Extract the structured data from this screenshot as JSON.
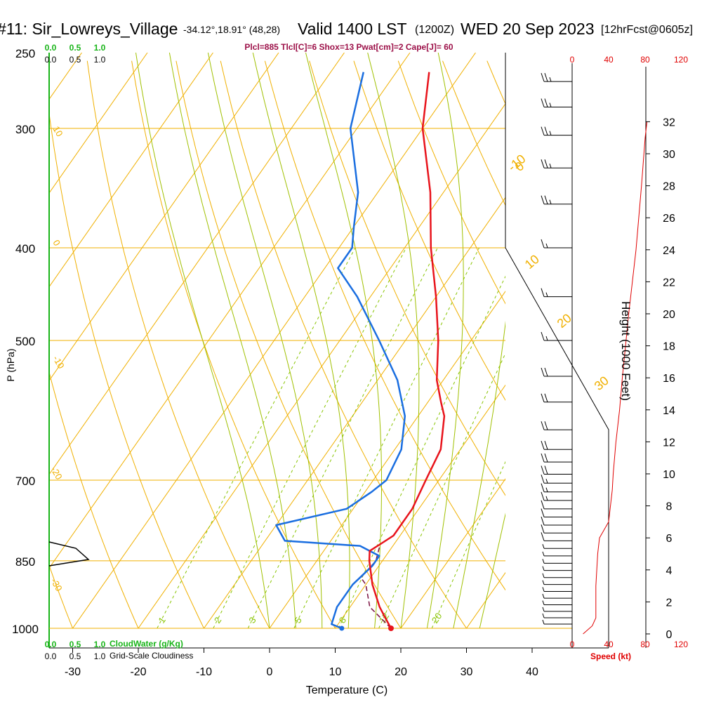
{
  "header": {
    "station": "#11: Sir_Lowreys_Village",
    "coords": "-34.12°,18.91° (48,28)",
    "valid": "Valid 1400 LST",
    "zulu": "(1200Z)",
    "date": "WED 20 Sep 2023",
    "forecast": "[12hrFcst@0605z]"
  },
  "params_line": "Plcl=885 Tlcl[C]=6 Shox=13 Pwat[cm]=2 Cape[J]= 60",
  "colors": {
    "temp": "#e8141c",
    "dew": "#1a6ee0",
    "isotherm": "#f0b000",
    "mixing": "#88c400",
    "moist": "#a0c000",
    "cloud": "#18b418",
    "param_text": "#9c1048",
    "speed": "#e00000"
  },
  "chart_data": {
    "type": "line",
    "title": "Skew-T sounding",
    "xlabel": "Temperature (C)",
    "ylabel": "P (hPa)",
    "right_ylabel": "Height (1000 Feet)",
    "x_ticks": [
      "-30",
      "-20",
      "-10",
      "0",
      "10",
      "20",
      "30",
      "40"
    ],
    "pressure_ticks": [
      "250",
      "300",
      "400",
      "500",
      "700",
      "850",
      "1000"
    ],
    "height_ticks": [
      "0",
      "2",
      "4",
      "6",
      "8",
      "10",
      "12",
      "14",
      "16",
      "18",
      "20",
      "22",
      "24",
      "26",
      "28",
      "30",
      "32"
    ],
    "xlim": [
      -35,
      45
    ],
    "plim": [
      1000,
      250
    ],
    "series": [
      {
        "name": "Temperature",
        "p": [
          1000,
          975,
          950,
          900,
          850,
          830,
          815,
          800,
          750,
          700,
          650,
          600,
          580,
          550,
          500,
          450,
          400,
          350,
          300,
          262
        ],
        "t": [
          18.5,
          16.5,
          14.5,
          11,
          8,
          7,
          8,
          9,
          9,
          8,
          7,
          4,
          2,
          -1,
          -5,
          -10,
          -16,
          -22,
          -30,
          -35
        ]
      },
      {
        "name": "Dew point",
        "p": [
          1000,
          990,
          950,
          900,
          860,
          840,
          820,
          810,
          780,
          750,
          720,
          700,
          650,
          600,
          550,
          500,
          450,
          420,
          400,
          380,
          350,
          300,
          262
        ],
        "t": [
          11,
          9,
          8,
          8,
          9,
          9,
          5,
          -7,
          -10,
          -1,
          1,
          2,
          1,
          -2,
          -7,
          -14,
          -22,
          -28,
          -28,
          -30,
          -33,
          -41,
          -45
        ]
      },
      {
        "name": "Parcel",
        "p": [
          1000,
          950,
          900,
          885,
          850,
          820
        ],
        "t": [
          18.5,
          13,
          10,
          8.5,
          9,
          8
        ]
      }
    ],
    "isotherm_labels": [
      "-10",
      "0",
      "10",
      "20",
      "30"
    ],
    "dry_adiabat_labels": [
      "10",
      "0",
      "-10",
      "-20",
      "-30"
    ],
    "mixing_ratio_labels": [
      "1",
      "2",
      "3",
      "5",
      "8",
      "12",
      "20"
    ],
    "cloud_water_ticks": [
      "0.0",
      "0.5",
      "1.0"
    ],
    "cloud_water_label": "CloudWater (g/Kg)",
    "cloudiness_ticks": [
      "0.0",
      "0.5",
      "1.0"
    ],
    "cloudiness_label": "Grid-Scale Cloudiness",
    "speed_ticks": [
      "0",
      "40",
      "80",
      "120"
    ],
    "speed_label": "Speed (kt)",
    "speed_profile": {
      "h_kft": [
        0,
        0.5,
        1,
        3,
        5,
        6,
        7,
        8,
        9,
        10,
        12,
        14,
        16,
        20,
        24,
        28,
        31,
        32
      ],
      "kt": [
        12,
        22,
        26,
        26,
        28,
        30,
        40,
        42,
        44,
        45,
        48,
        52,
        55,
        62,
        70,
        76,
        80,
        82
      ]
    },
    "wind_barbs": {
      "p": [
        990,
        975,
        960,
        945,
        930,
        915,
        900,
        885,
        870,
        855,
        840,
        825,
        810,
        795,
        780,
        765,
        750,
        735,
        720,
        705,
        690,
        670,
        650,
        620,
        580,
        545,
        500,
        450,
        400,
        360,
        330,
        305,
        285,
        268
      ],
      "kt": [
        5,
        5,
        5,
        5,
        5,
        5,
        5,
        5,
        5,
        5,
        5,
        5,
        10,
        10,
        10,
        10,
        10,
        15,
        15,
        15,
        20,
        20,
        20,
        20,
        20,
        20,
        15,
        15,
        15,
        25,
        25,
        25,
        25,
        25
      ]
    }
  }
}
